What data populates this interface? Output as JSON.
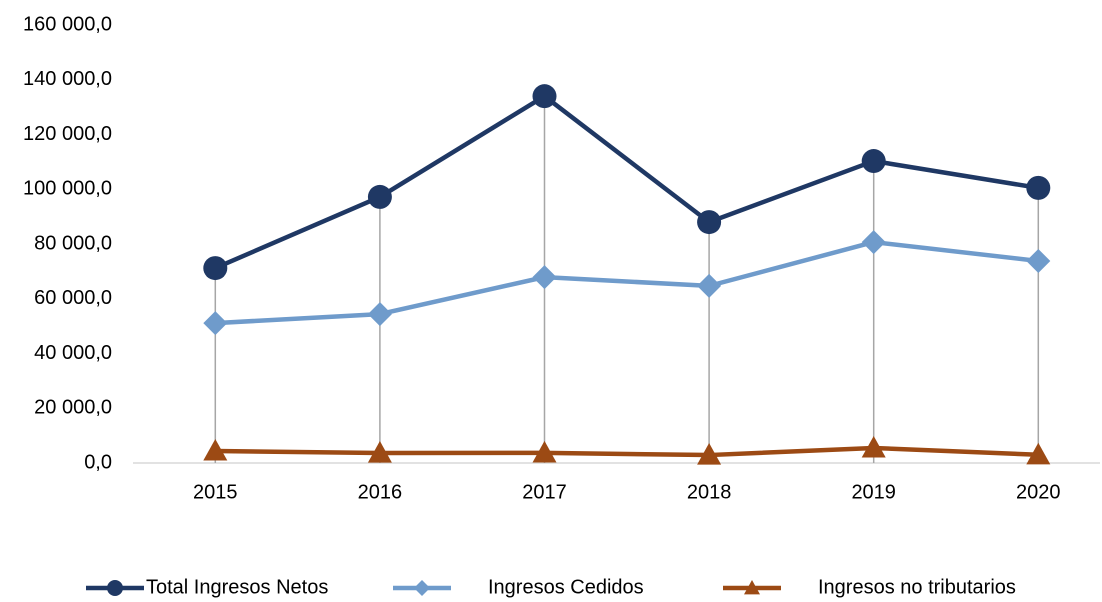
{
  "chart_data": {
    "type": "line",
    "categories": [
      "2015",
      "2016",
      "2017",
      "2018",
      "2019",
      "2020"
    ],
    "series": [
      {
        "name": "Total Ingresos Netos",
        "color": "#1f3864",
        "marker": "circle",
        "values": [
          71200,
          97200,
          134000,
          88000,
          110300,
          100500
        ]
      },
      {
        "name": "Ingresos Cedidos",
        "color": "#6f9bcb",
        "marker": "diamond",
        "values": [
          51100,
          54400,
          67900,
          64700,
          80700,
          73800
        ]
      },
      {
        "name": "Ingresos no tributarios",
        "color": "#9c4a14",
        "marker": "triangle",
        "values": [
          4400,
          3650,
          3700,
          2900,
          5500,
          3000
        ]
      }
    ],
    "ylim": [
      0,
      160000
    ],
    "yticks": [
      {
        "value": 0,
        "label": "0,0"
      },
      {
        "value": 20000,
        "label": "20 000,0"
      },
      {
        "value": 40000,
        "label": "40 000,0"
      },
      {
        "value": 60000,
        "label": "60 000,0"
      },
      {
        "value": 80000,
        "label": "80 000,0"
      },
      {
        "value": 100000,
        "label": "100 000,0"
      },
      {
        "value": 120000,
        "label": "120 000,0"
      },
      {
        "value": 140000,
        "label": "140 000,0"
      },
      {
        "value": 160000,
        "label": "160 000,0"
      }
    ],
    "grid": false,
    "drop_lines": true,
    "legend": "bottom"
  }
}
